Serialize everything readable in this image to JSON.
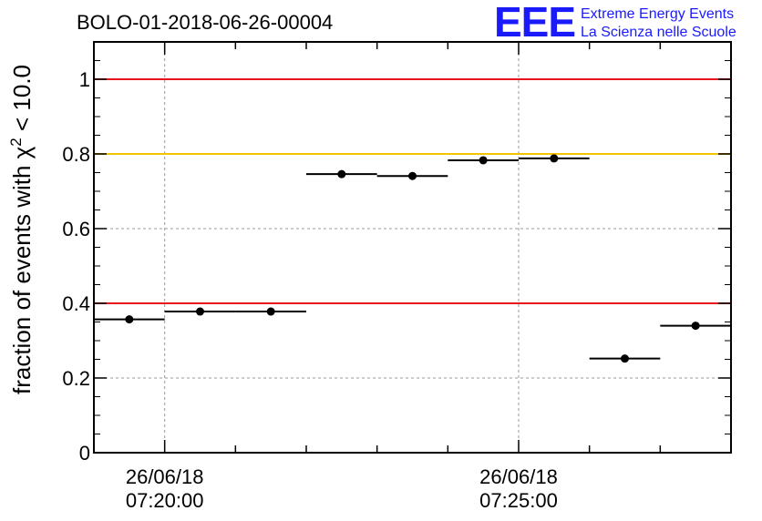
{
  "chart_data": {
    "type": "scatter",
    "title": "BOLO-01-2018-06-26-00004",
    "ylabel_prefix": "fraction of events with ",
    "ylabel_symbol": "χ",
    "ylabel_superscript": "2",
    "ylabel_suffix": " < 10.0",
    "ylim": [
      0,
      1.1
    ],
    "yticks": [
      0,
      0.2,
      0.4,
      0.6,
      0.8,
      1
    ],
    "ytick_labels": [
      "0",
      "0.2",
      "0.4",
      "0.6",
      "0.8",
      "1"
    ],
    "xlim_minutes": [
      0,
      9
    ],
    "xticks": [
      {
        "x": 1,
        "date": "26/06/18",
        "time": "07:20:00"
      },
      {
        "x": 6,
        "date": "26/06/18",
        "time": "07:25:00"
      }
    ],
    "grid": true,
    "points": [
      {
        "x": 0.5,
        "xerr": 0.5,
        "y": 0.357
      },
      {
        "x": 1.5,
        "xerr": 0.5,
        "y": 0.378
      },
      {
        "x": 2.5,
        "xerr": 0.5,
        "y": 0.378
      },
      {
        "x": 3.5,
        "xerr": 0.5,
        "y": 0.746
      },
      {
        "x": 4.5,
        "xerr": 0.5,
        "y": 0.741
      },
      {
        "x": 5.5,
        "xerr": 0.5,
        "y": 0.783
      },
      {
        "x": 6.5,
        "xerr": 0.5,
        "y": 0.788
      },
      {
        "x": 7.5,
        "xerr": 0.5,
        "y": 0.252
      },
      {
        "x": 8.5,
        "xerr": 0.5,
        "y": 0.34
      }
    ],
    "reference_lines": [
      {
        "y": 1.0,
        "color": "#e8141b"
      },
      {
        "y": 0.8,
        "color": "#f5c400"
      },
      {
        "y": 0.4,
        "color": "#e8141b"
      }
    ]
  },
  "logo": {
    "mark": "EEE",
    "line1": "Extreme Energy Events",
    "line2": "La Scienza nelle Scuole",
    "color": "#1a1aff"
  }
}
